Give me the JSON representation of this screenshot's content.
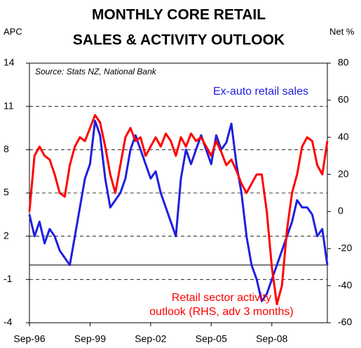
{
  "chart_data": {
    "type": "line",
    "title": [
      "MONTHLY CORE RETAIL",
      "SALES & ACTIVITY OUTLOOK"
    ],
    "ylabel": "APC",
    "y2label": "Net %",
    "annotation": "Source: Stats NZ, National Bank",
    "categories": [
      "Sep-96",
      null,
      null,
      null,
      null,
      null,
      null,
      null,
      null,
      null,
      null,
      null,
      "Sep-99",
      null,
      null,
      null,
      null,
      null,
      null,
      null,
      null,
      null,
      null,
      null,
      "Sep-02",
      null,
      null,
      null,
      null,
      null,
      null,
      null,
      null,
      null,
      null,
      null,
      "Sep-05",
      null,
      null,
      null,
      null,
      null,
      null,
      null,
      null,
      null,
      null,
      null,
      "Sep-08",
      null,
      null,
      null,
      null,
      null,
      null,
      null,
      null,
      null,
      null,
      null
    ],
    "ylim": [
      -4,
      14
    ],
    "yticks": [
      14,
      11,
      8,
      5,
      2,
      -1,
      -4
    ],
    "y2lim": [
      -60,
      80
    ],
    "y2ticks": [
      80,
      60,
      40,
      20,
      0,
      -20,
      -40,
      -60
    ],
    "grid": true,
    "series": [
      {
        "name": "Ex-auto retail sales",
        "color": "#1f1fe0",
        "values": [
          3.5,
          2,
          3,
          1.5,
          2.5,
          2,
          1,
          0.5,
          0,
          2,
          4,
          6,
          7,
          10,
          9,
          6,
          4,
          4.5,
          5,
          6,
          8,
          9,
          8,
          7,
          6,
          6.5,
          5,
          4,
          3,
          2,
          6,
          8,
          7,
          8,
          9,
          8,
          7,
          9,
          8,
          8.5,
          9.8,
          7,
          5,
          2,
          0,
          -1,
          -2.5,
          -2,
          -1,
          0,
          1,
          2,
          3,
          4.5,
          4,
          4,
          3.5,
          2,
          2.5,
          0
        ]
      },
      {
        "name": [
          "Retail sector activity",
          "outlook (RHS, adv 3 months)"
        ],
        "color": "#ff0000",
        "axis": "y2",
        "values": [
          0,
          30,
          35,
          30,
          28,
          20,
          10,
          8,
          25,
          35,
          40,
          38,
          45,
          52,
          48,
          35,
          20,
          10,
          25,
          40,
          45,
          38,
          40,
          30,
          35,
          40,
          35,
          42,
          38,
          30,
          40,
          35,
          42,
          38,
          40,
          35,
          30,
          38,
          32,
          25,
          28,
          22,
          15,
          10,
          15,
          20,
          20,
          0,
          -30,
          -50,
          -40,
          -10,
          10,
          20,
          35,
          40,
          38,
          25,
          20,
          38
        ]
      }
    ]
  }
}
